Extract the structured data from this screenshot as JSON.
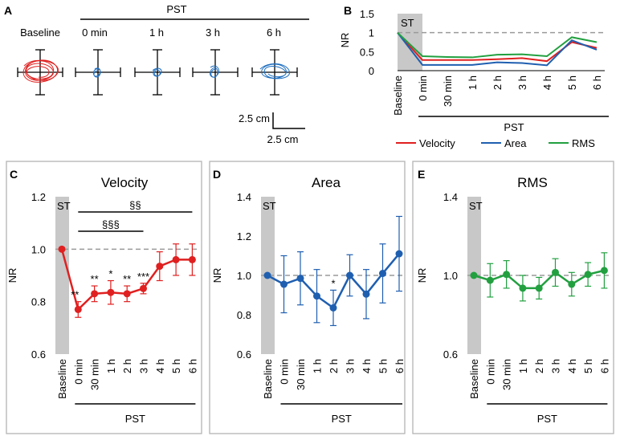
{
  "panels": {
    "A": {
      "letter": "A",
      "group_label": "PST",
      "trace_labels": [
        "Baseline",
        "0 min",
        "1 h",
        "3 h",
        "6 h"
      ],
      "scale_x": "2.5 cm",
      "scale_y": "2.5 cm"
    },
    "B": {
      "letter": "B"
    },
    "C": {
      "letter": "C"
    },
    "D": {
      "letter": "D"
    },
    "E": {
      "letter": "E"
    }
  },
  "colors": {
    "velocity": "#e02020",
    "area": "#1f5fb0",
    "rms": "#22a040",
    "stim": "#c8c8c8",
    "ref": "#9a9a9a"
  },
  "chart_data": [
    {
      "id": "B",
      "type": "line",
      "title": "",
      "ylabel": "NR",
      "xlabel": "PST",
      "ylim": [
        0,
        1.5
      ],
      "yticks": [
        "0",
        "0.5",
        "1",
        "1.5"
      ],
      "reference_line": 1,
      "stimulus_label": "ST",
      "categories": [
        "Baseline",
        "0 min",
        "30 min",
        "1 h",
        "2 h",
        "3 h",
        "4 h",
        "5 h",
        "6 h"
      ],
      "series": [
        {
          "name": "Velocity",
          "values": [
            1.0,
            0.28,
            0.28,
            0.28,
            0.3,
            0.33,
            0.25,
            0.75,
            0.6
          ]
        },
        {
          "name": "Area",
          "values": [
            1.0,
            0.15,
            0.15,
            0.15,
            0.22,
            0.2,
            0.14,
            0.8,
            0.55
          ]
        },
        {
          "name": "RMS",
          "values": [
            1.0,
            0.38,
            0.36,
            0.35,
            0.42,
            0.43,
            0.38,
            0.88,
            0.75
          ]
        }
      ]
    },
    {
      "id": "C",
      "type": "line",
      "title": "Velocity",
      "ylabel": "NR",
      "xlabel": "PST",
      "ylim": [
        0.6,
        1.2
      ],
      "yticks": [
        "0.6",
        "0.8",
        "1.0",
        "1.2"
      ],
      "reference_line": 1.0,
      "stimulus_label": "ST",
      "categories": [
        "Baseline",
        "0 min",
        "30 min",
        "1 h",
        "2 h",
        "3 h",
        "4 h",
        "5 h",
        "6 h"
      ],
      "values": [
        1.0,
        0.77,
        0.83,
        0.835,
        0.83,
        0.85,
        0.935,
        0.96,
        0.96
      ],
      "errors": [
        0,
        0.03,
        0.03,
        0.045,
        0.03,
        0.02,
        0.055,
        0.06,
        0.06
      ],
      "significance": [
        "",
        "**",
        "**",
        "*",
        "**",
        "***",
        "",
        "",
        ""
      ],
      "brackets": [
        {
          "label": "§§",
          "from": 1,
          "to": 8
        },
        {
          "label": "§§§",
          "from": 1,
          "to": 5
        }
      ]
    },
    {
      "id": "D",
      "type": "line",
      "title": "Area",
      "ylabel": "NR",
      "xlabel": "PST",
      "ylim": [
        0.6,
        1.4
      ],
      "yticks": [
        "0.6",
        "0.8",
        "1.0",
        "1.2",
        "1.4"
      ],
      "reference_line": 1.0,
      "stimulus_label": "ST",
      "categories": [
        "Baseline",
        "0 min",
        "30 min",
        "1 h",
        "2 h",
        "3 h",
        "4 h",
        "5 h",
        "6 h"
      ],
      "values": [
        1.0,
        0.955,
        0.985,
        0.895,
        0.835,
        1.0,
        0.905,
        1.01,
        1.11
      ],
      "errors": [
        0,
        0.145,
        0.135,
        0.135,
        0.09,
        0.105,
        0.125,
        0.15,
        0.19
      ],
      "significance": [
        "",
        "",
        "",
        "",
        "*",
        "",
        "",
        "",
        ""
      ],
      "brackets": []
    },
    {
      "id": "E",
      "type": "line",
      "title": "RMS",
      "ylabel": "NR",
      "xlabel": "PST",
      "ylim": [
        0.6,
        1.4
      ],
      "yticks": [
        "0.6",
        "1.0",
        "1.4"
      ],
      "reference_line": 1.0,
      "stimulus_label": "ST",
      "categories": [
        "Baseline",
        "0 min",
        "30 min",
        "1 h",
        "2 h",
        "3 h",
        "4 h",
        "5 h",
        "6 h"
      ],
      "values": [
        1.0,
        0.975,
        1.005,
        0.935,
        0.935,
        1.015,
        0.955,
        1.005,
        1.025
      ],
      "errors": [
        0,
        0.085,
        0.07,
        0.065,
        0.055,
        0.07,
        0.06,
        0.06,
        0.09
      ],
      "significance": [
        "",
        "",
        "",
        "",
        "",
        "",
        "",
        "",
        ""
      ],
      "brackets": []
    }
  ]
}
